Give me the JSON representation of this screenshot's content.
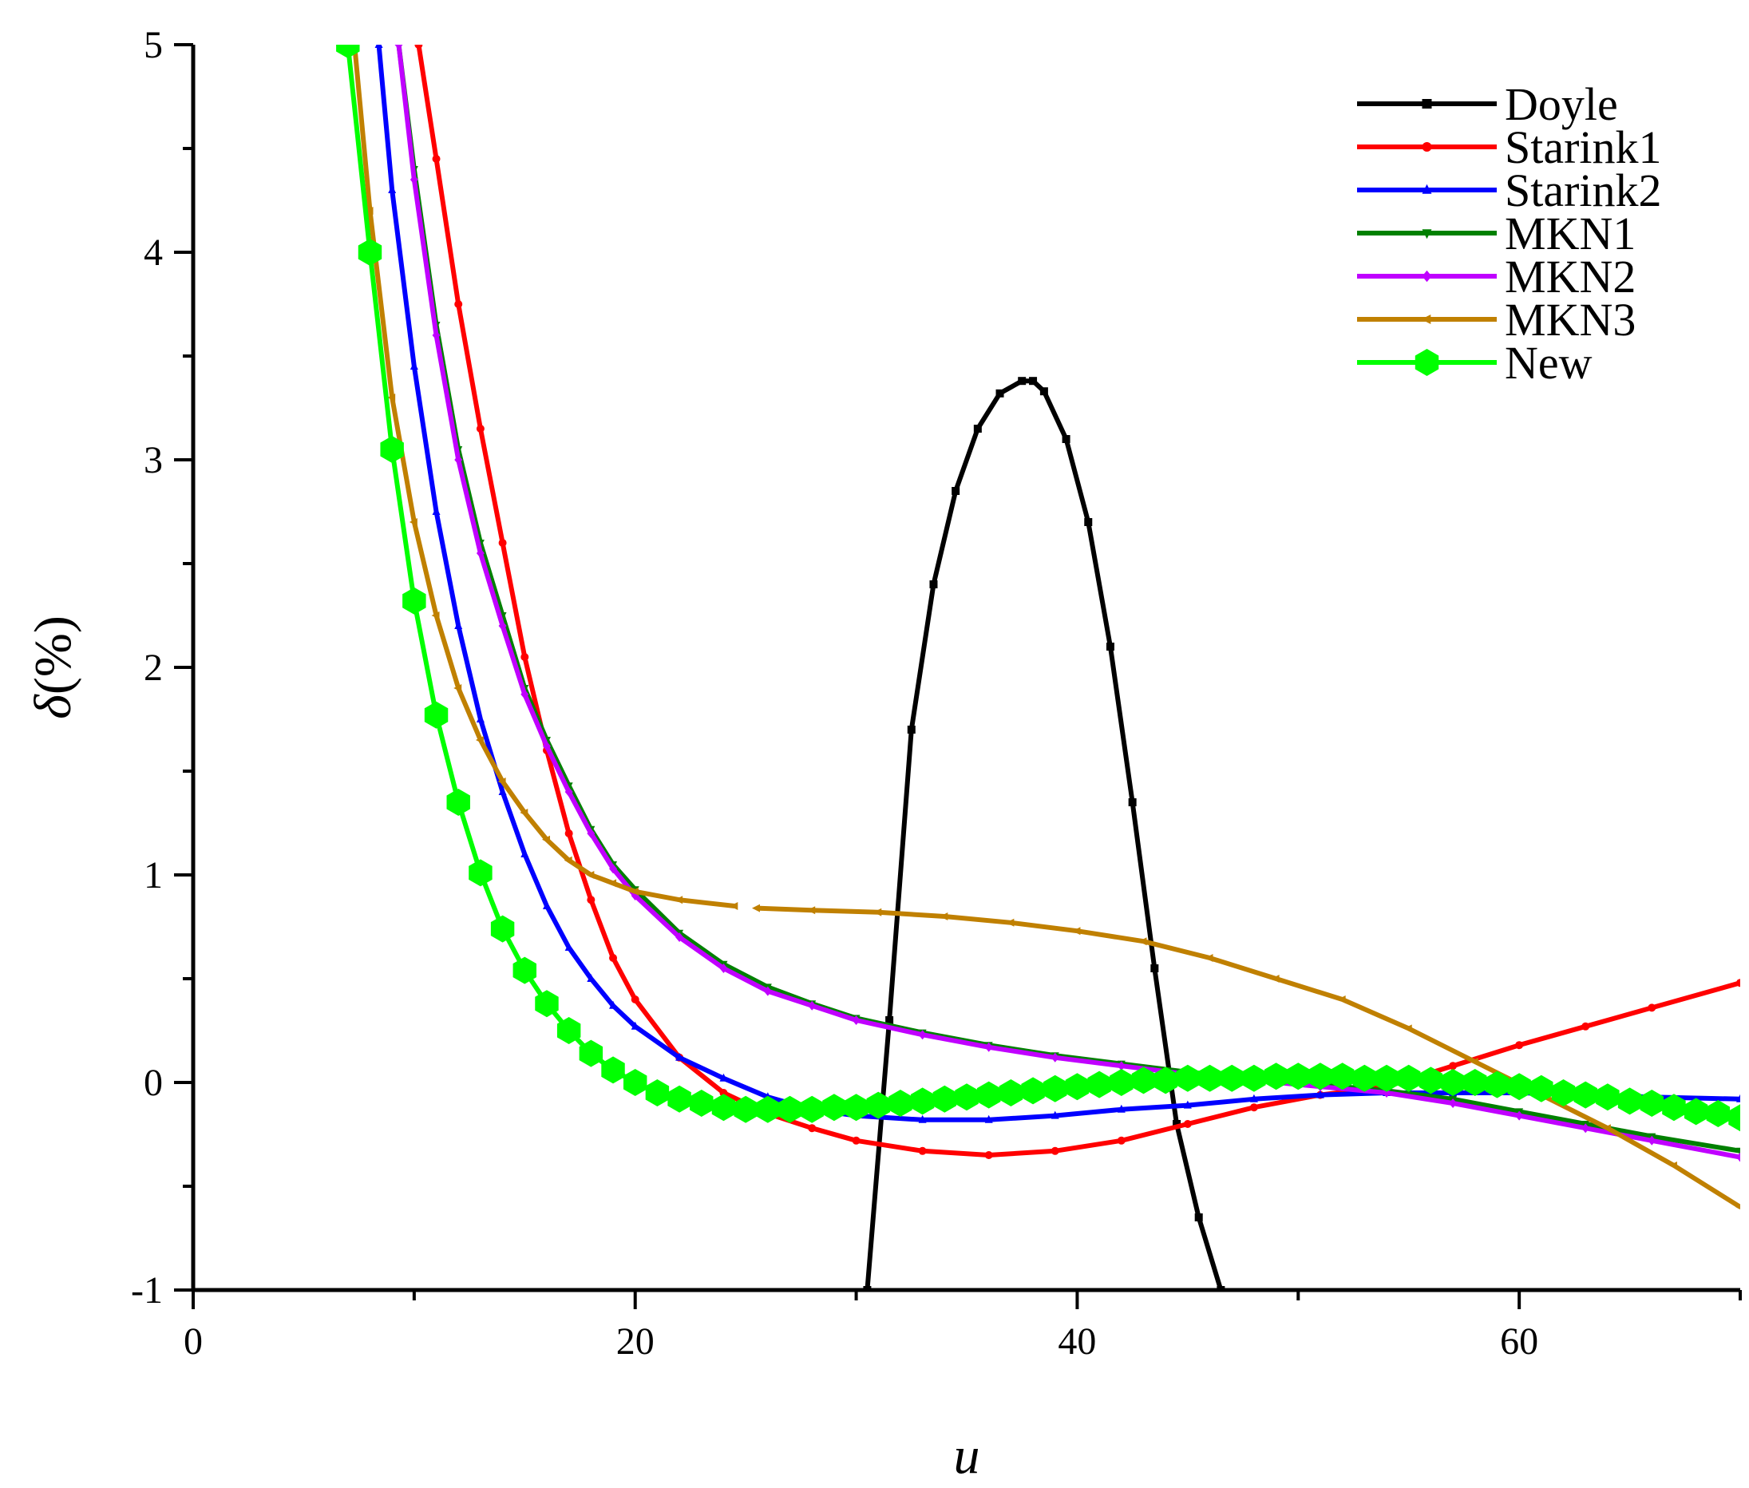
{
  "chart_data": {
    "type": "line",
    "title": "",
    "xlabel": "u",
    "ylabel_symbol": "δ",
    "ylabel_unit": "(%)",
    "xlim": [
      0,
      70
    ],
    "ylim": [
      -1,
      5
    ],
    "x_ticks": [
      0,
      20,
      40,
      60
    ],
    "y_ticks": [
      -1,
      0,
      1,
      2,
      3,
      4,
      5
    ],
    "grid": false,
    "legend_position": "top-right",
    "series": [
      {
        "name": "Doyle",
        "color": "#000000",
        "marker": "square",
        "x": [
          30.5,
          31.5,
          32.5,
          33.5,
          34.5,
          35.5,
          36.5,
          37.5,
          38.0,
          38.5,
          39.5,
          40.5,
          41.5,
          42.5,
          43.5,
          44.5,
          45.5,
          46.5
        ],
        "y": [
          -1.0,
          0.3,
          1.7,
          2.4,
          2.85,
          3.15,
          3.32,
          3.38,
          3.38,
          3.33,
          3.1,
          2.7,
          2.1,
          1.35,
          0.55,
          -0.2,
          -0.65,
          -1.0
        ]
      },
      {
        "name": "Starink1",
        "color": "#ff0000",
        "marker": "circle",
        "x": [
          10.2,
          11,
          12,
          13,
          14,
          15,
          16,
          17,
          18,
          19,
          20,
          22,
          24,
          26,
          28,
          30,
          33,
          36,
          39,
          42,
          45,
          48,
          51,
          54,
          57,
          60,
          63,
          66,
          70
        ],
        "y": [
          5.0,
          4.45,
          3.75,
          3.15,
          2.6,
          2.05,
          1.6,
          1.2,
          0.88,
          0.6,
          0.4,
          0.12,
          -0.05,
          -0.15,
          -0.22,
          -0.28,
          -0.33,
          -0.35,
          -0.33,
          -0.28,
          -0.2,
          -0.12,
          -0.06,
          -0.02,
          0.08,
          0.18,
          0.27,
          0.36,
          0.48
        ]
      },
      {
        "name": "Starink2",
        "color": "#0000ff",
        "marker": "triangle-up",
        "x": [
          8.4,
          9,
          10,
          11,
          12,
          13,
          14,
          15,
          16,
          17,
          18,
          19,
          20,
          22,
          24,
          26,
          28,
          30,
          33,
          36,
          39,
          42,
          45,
          48,
          51,
          54,
          57,
          60,
          63,
          66,
          70
        ],
        "y": [
          5.0,
          4.3,
          3.45,
          2.75,
          2.2,
          1.75,
          1.4,
          1.1,
          0.85,
          0.65,
          0.5,
          0.37,
          0.27,
          0.12,
          0.02,
          -0.07,
          -0.13,
          -0.16,
          -0.18,
          -0.18,
          -0.16,
          -0.13,
          -0.11,
          -0.08,
          -0.06,
          -0.05,
          -0.05,
          -0.05,
          -0.06,
          -0.07,
          -0.08
        ]
      },
      {
        "name": "MKN1",
        "color": "#008000",
        "marker": "triangle-down",
        "x": [
          9.3,
          10,
          11,
          12,
          13,
          14,
          15,
          16,
          17,
          18,
          19,
          20,
          22,
          24,
          26,
          28,
          30,
          33,
          36,
          39,
          42,
          45,
          48,
          51,
          54,
          57,
          60,
          63,
          66,
          70
        ],
        "y": [
          5.0,
          4.4,
          3.65,
          3.05,
          2.6,
          2.25,
          1.9,
          1.65,
          1.43,
          1.22,
          1.05,
          0.93,
          0.72,
          0.57,
          0.46,
          0.38,
          0.31,
          0.24,
          0.18,
          0.13,
          0.09,
          0.05,
          0.02,
          -0.01,
          -0.04,
          -0.08,
          -0.14,
          -0.2,
          -0.26,
          -0.33
        ]
      },
      {
        "name": "MKN2",
        "color": "#c000ff",
        "marker": "diamond",
        "x": [
          9.3,
          10,
          11,
          12,
          13,
          14,
          15,
          16,
          17,
          18,
          19,
          20,
          22,
          24,
          26,
          28,
          30,
          33,
          36,
          39,
          42,
          45,
          48,
          51,
          54,
          57,
          60,
          63,
          66,
          70
        ],
        "y": [
          5.0,
          4.35,
          3.6,
          3.0,
          2.55,
          2.2,
          1.87,
          1.62,
          1.4,
          1.2,
          1.03,
          0.9,
          0.7,
          0.55,
          0.44,
          0.37,
          0.3,
          0.23,
          0.17,
          0.12,
          0.08,
          0.04,
          0.01,
          -0.02,
          -0.05,
          -0.1,
          -0.16,
          -0.22,
          -0.28,
          -0.36
        ]
      },
      {
        "name": "MKN3",
        "color": "#c08000",
        "marker": "triangle-left",
        "gap_after_index": 15,
        "x": [
          7.3,
          8,
          9,
          10,
          11,
          12,
          13,
          14,
          15,
          16,
          17,
          18,
          19,
          20,
          22,
          24.5,
          25.5,
          28,
          31,
          34,
          37,
          40,
          43,
          46,
          49,
          52,
          55,
          58,
          61,
          64,
          67,
          70
        ],
        "y": [
          5.0,
          4.2,
          3.3,
          2.7,
          2.25,
          1.9,
          1.65,
          1.45,
          1.3,
          1.17,
          1.07,
          1.0,
          0.96,
          0.92,
          0.88,
          0.85,
          0.84,
          0.83,
          0.82,
          0.8,
          0.77,
          0.73,
          0.68,
          0.6,
          0.5,
          0.4,
          0.26,
          0.1,
          -0.06,
          -0.22,
          -0.4,
          -0.6
        ]
      },
      {
        "name": "New",
        "color": "#00ff00",
        "marker": "hexagon",
        "x": [
          7,
          8,
          9,
          10,
          11,
          12,
          13,
          14,
          15,
          16,
          17,
          18,
          19,
          20,
          21,
          22,
          23,
          24,
          25,
          26,
          27,
          28,
          29,
          30,
          31,
          32,
          33,
          34,
          35,
          36,
          37,
          38,
          39,
          40,
          41,
          42,
          43,
          44,
          45,
          46,
          47,
          48,
          49,
          50,
          51,
          52,
          53,
          54,
          55,
          56,
          57,
          58,
          59,
          60,
          61,
          62,
          63,
          64,
          65,
          66,
          67,
          68,
          69,
          70
        ],
        "y": [
          5.0,
          4.0,
          3.05,
          2.32,
          1.77,
          1.35,
          1.01,
          0.74,
          0.54,
          0.38,
          0.25,
          0.14,
          0.06,
          0.0,
          -0.05,
          -0.08,
          -0.1,
          -0.12,
          -0.13,
          -0.13,
          -0.13,
          -0.13,
          -0.12,
          -0.12,
          -0.11,
          -0.1,
          -0.09,
          -0.08,
          -0.07,
          -0.06,
          -0.05,
          -0.04,
          -0.03,
          -0.02,
          -0.01,
          0.0,
          0.01,
          0.01,
          0.02,
          0.02,
          0.02,
          0.02,
          0.03,
          0.03,
          0.03,
          0.03,
          0.02,
          0.02,
          0.02,
          0.01,
          0.0,
          0.0,
          -0.01,
          -0.02,
          -0.03,
          -0.05,
          -0.06,
          -0.07,
          -0.09,
          -0.1,
          -0.12,
          -0.14,
          -0.15,
          -0.17
        ]
      }
    ]
  }
}
